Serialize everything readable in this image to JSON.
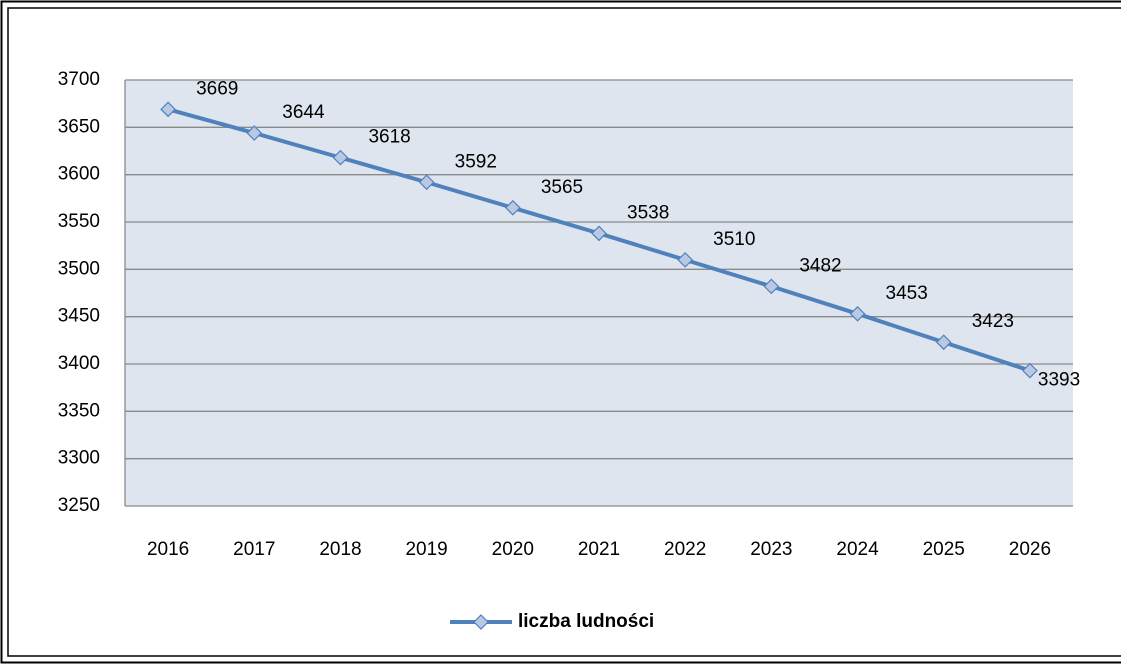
{
  "chart_data": {
    "type": "line",
    "categories": [
      "2016",
      "2017",
      "2018",
      "2019",
      "2020",
      "2021",
      "2022",
      "2023",
      "2024",
      "2025",
      "2026"
    ],
    "series": [
      {
        "name": "liczba ludności",
        "color": "#4f81bd",
        "values": [
          3669,
          3644,
          3618,
          3592,
          3565,
          3538,
          3510,
          3482,
          3453,
          3423,
          3393
        ]
      }
    ],
    "ylim": [
      3250,
      3700
    ],
    "yticks": [
      3250,
      3300,
      3350,
      3400,
      3450,
      3500,
      3550,
      3600,
      3650,
      3700
    ],
    "grid": true,
    "legend": "bottom"
  }
}
